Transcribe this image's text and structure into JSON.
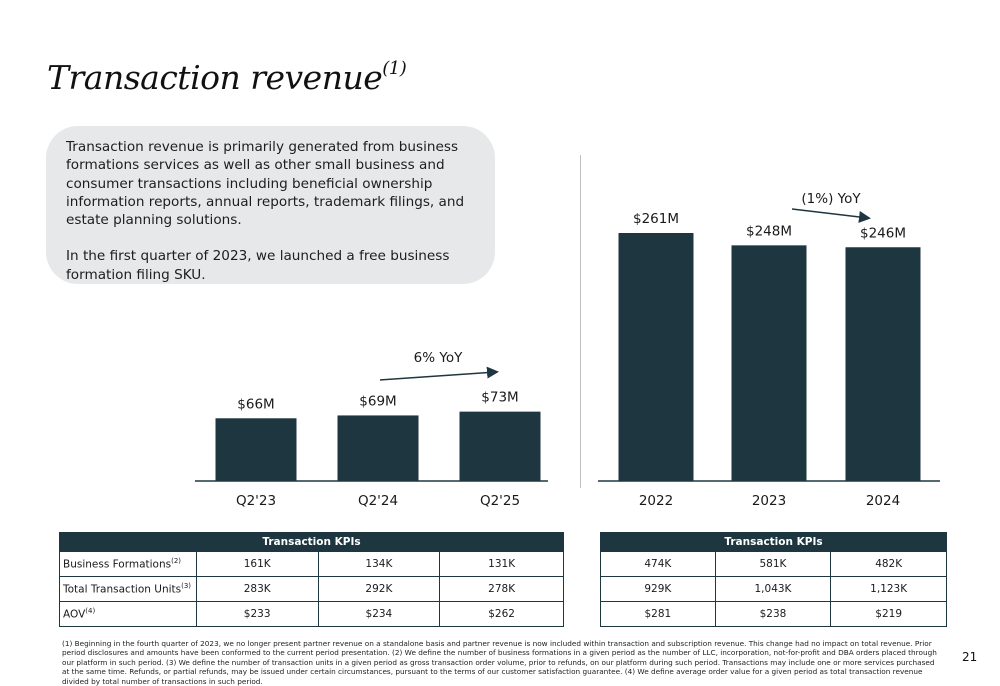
{
  "title": {
    "text": "Transaction revenue",
    "sup": "(1)"
  },
  "description": {
    "paragraph1": "Transaction revenue is primarily generated from business formations services as well as other small business and consumer transactions including beneficial ownership information reports, annual reports, trademark filings, and estate planning solutions.",
    "paragraph2": "In the first quarter of 2023, we launched a free business formation filing SKU."
  },
  "colors": {
    "bar": "#1e3640",
    "header": "#1e3640",
    "panel": "#e6e8ea"
  },
  "chart_data": [
    {
      "type": "bar",
      "categories": [
        "Q2'23",
        "Q2'24",
        "Q2'25"
      ],
      "values": [
        66,
        69,
        73
      ],
      "data_labels": [
        "$66M",
        "$69M",
        "$73M"
      ],
      "annotation": "6% YoY",
      "ylim": [
        0,
        261
      ]
    },
    {
      "type": "bar",
      "categories": [
        "2022",
        "2023",
        "2024"
      ],
      "values": [
        261,
        248,
        246
      ],
      "data_labels": [
        "$261M",
        "$248M",
        "$246M"
      ],
      "annotation": "(1%) YoY",
      "ylim": [
        0,
        261
      ]
    }
  ],
  "kpi_quarterly": {
    "header": "Transaction KPIs",
    "rows": [
      {
        "label": "Business Formations",
        "sup": "(2)",
        "values": [
          "161K",
          "134K",
          "131K"
        ]
      },
      {
        "label": "Total Transaction Units",
        "sup": "(3)",
        "values": [
          "283K",
          "292K",
          "278K"
        ]
      },
      {
        "label": "AOV",
        "sup": "(4)",
        "values": [
          "$233",
          "$234",
          "$262"
        ]
      }
    ]
  },
  "kpi_annual": {
    "header": "Transaction KPIs",
    "rows": [
      {
        "values": [
          "474K",
          "581K",
          "482K"
        ]
      },
      {
        "values": [
          "929K",
          "1,043K",
          "1,123K"
        ]
      },
      {
        "values": [
          "$281",
          "$238",
          "$219"
        ]
      }
    ]
  },
  "footnote": "(1) Beginning in the fourth quarter of 2023, we no longer present partner revenue on a standalone basis and partner revenue is now included within transaction and subscription revenue. This change had no impact on total revenue. Prior period disclosures and amounts have been conformed to the current period presentation. (2) We define the number of business formations in a given period as the number of LLC, incorporation, not-for-profit and DBA orders placed through our platform in such period. (3) We define the number of transaction units in a given period as gross transaction order volume, prior to refunds, on our platform during such period. Transactions may include one or more services purchased at the same time. Refunds, or partial refunds, may be issued under certain circumstances, pursuant to the terms of our customer satisfaction guarantee. (4) We define average order value for a given period as total transaction revenue divided by total number of transactions in such period.",
  "page_number": "21"
}
